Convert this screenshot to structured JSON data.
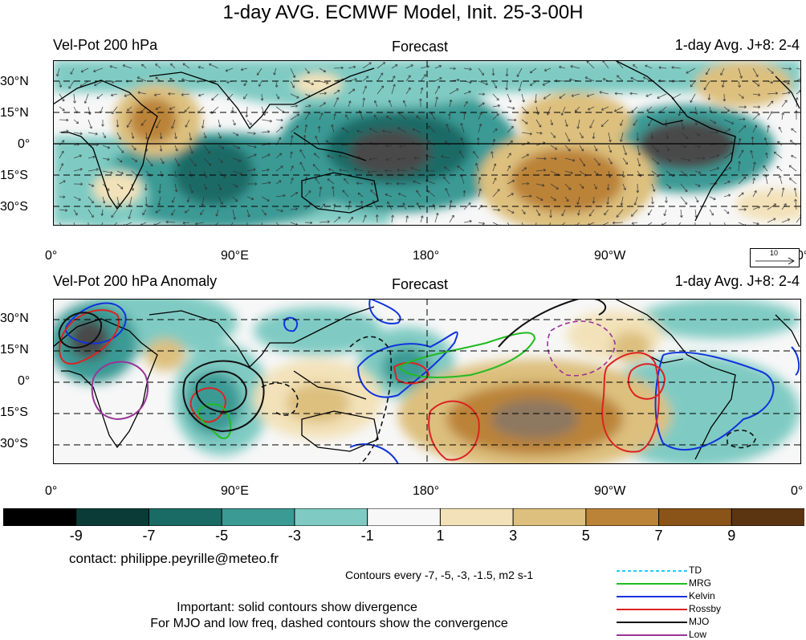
{
  "title": "1-day AVG. ECMWF Model, Init. 25-3-00H",
  "panels": [
    {
      "left_label": "Vel-Pot 200 hPa",
      "center_label": "Forecast",
      "right_label": "1-day Avg. J+8: 2-4"
    },
    {
      "left_label": "Vel-Pot 200 hPa Anomaly",
      "center_label": "Forecast",
      "right_label": "1-day Avg. J+8: 2-4"
    }
  ],
  "lat_ticks": [
    "30°N",
    "15°N",
    "0°",
    "15°S",
    "30°S"
  ],
  "lon_ticks": [
    "0°",
    "90°E",
    "180°",
    "90°W",
    "0°"
  ],
  "vector_key": {
    "value": "10"
  },
  "colorbar": {
    "labels": [
      "-9",
      "-7",
      "-5",
      "-3",
      "-1",
      "1",
      "3",
      "5",
      "7",
      "9"
    ],
    "colors": [
      "#000000",
      "#0b3b37",
      "#1a6b66",
      "#3b9a94",
      "#7fcbc3",
      "#f7f7f7",
      "#f3e2b9",
      "#ddc07e",
      "#bb8337",
      "#8a5418",
      "#5b3512"
    ]
  },
  "contact": "contact: philippe.peyrille@meteo.fr",
  "contours_note": "Contours every  -7, -5, -3, -1.5, m2 s-1",
  "note_line1": "Important: solid contours show divergence",
  "note_line2": "For MJO and low freq, dashed contours show the convergence",
  "legend": [
    {
      "label": "TD",
      "color": "#22ccff",
      "dashed": true
    },
    {
      "label": "MRG",
      "color": "#22bb22",
      "dashed": false
    },
    {
      "label": "Kelvin",
      "color": "#1133dd",
      "dashed": false
    },
    {
      "label": "Rossby",
      "color": "#dd2222",
      "dashed": false
    },
    {
      "label": "MJO",
      "color": "#111111",
      "dashed": false
    },
    {
      "label": "Low",
      "color": "#993399",
      "dashed": false
    }
  ]
}
